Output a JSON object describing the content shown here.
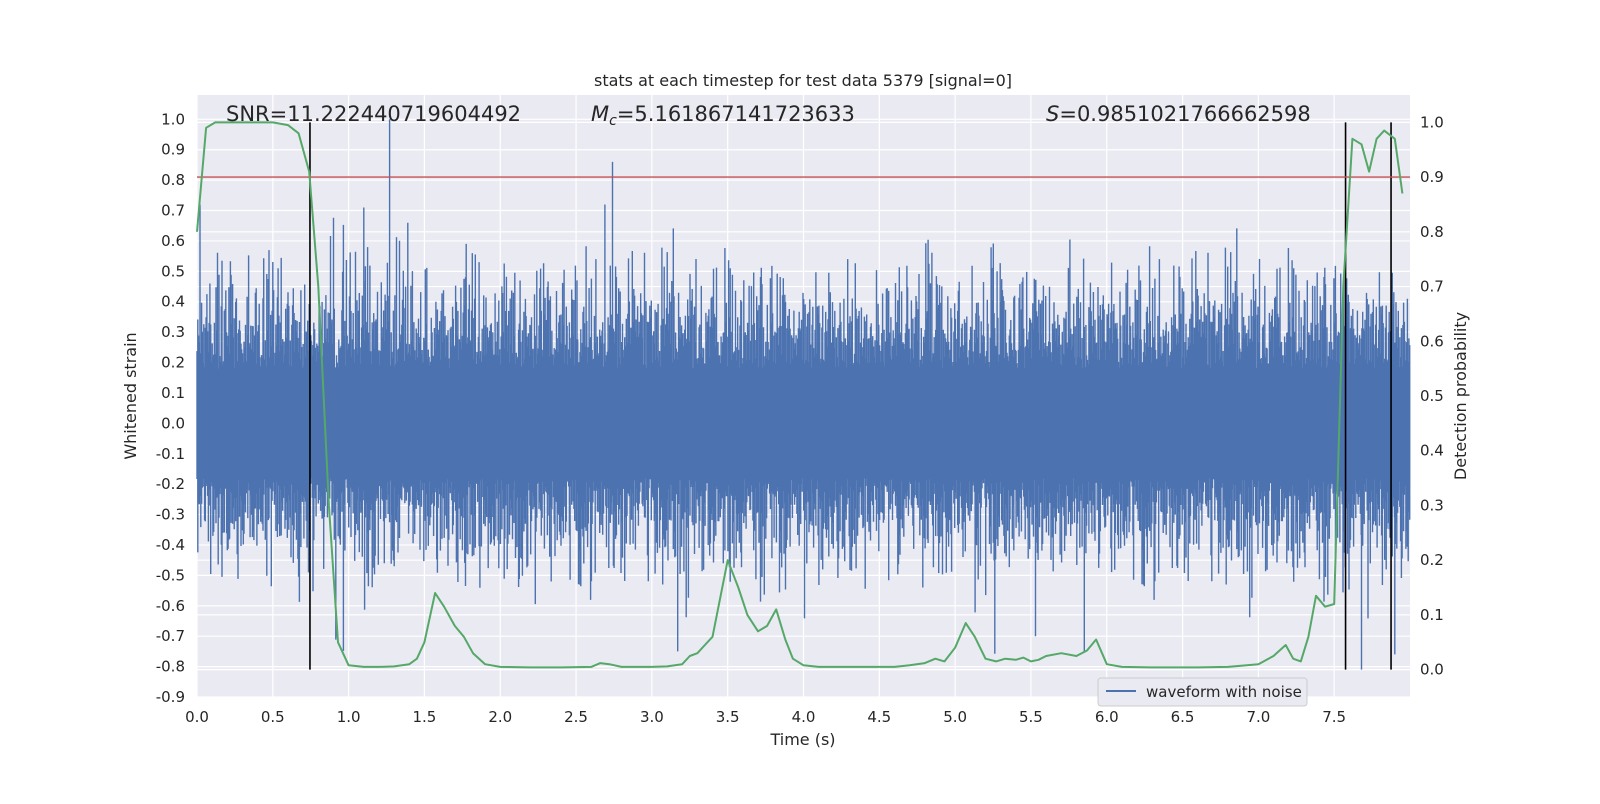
{
  "chart_data": {
    "type": "line",
    "title": "stats at each timestep for test data 5379 [signal=0]",
    "xlabel": "Time (s)",
    "ylabel": "Whitened strain",
    "y2label": "Detection probability",
    "xlim": [
      0.0,
      8.0
    ],
    "ylim": [
      -0.9,
      1.08
    ],
    "y2lim": [
      -0.05,
      1.05
    ],
    "grid": true,
    "legend_position": "lower-right",
    "x_ticks": [
      "0.0",
      "0.5",
      "1.0",
      "1.5",
      "2.0",
      "2.5",
      "3.0",
      "3.5",
      "4.0",
      "4.5",
      "5.0",
      "5.5",
      "6.0",
      "6.5",
      "7.0",
      "7.5"
    ],
    "y_ticks": [
      "-0.9",
      "-0.8",
      "-0.7",
      "-0.6",
      "-0.5",
      "-0.4",
      "-0.3",
      "-0.2",
      "-0.1",
      "0.0",
      "0.1",
      "0.2",
      "0.3",
      "0.4",
      "0.5",
      "0.6",
      "0.7",
      "0.8",
      "0.9",
      "1.0"
    ],
    "y2_ticks": [
      "0.0",
      "0.1",
      "0.2",
      "0.3",
      "0.4",
      "0.5",
      "0.6",
      "0.7",
      "0.8",
      "0.9",
      "1.0"
    ],
    "annotations": {
      "snr": "SNR=11.222440719604492",
      "mc_symbol": "M",
      "mc_sub": "c",
      "mc_value": "=5.161867141723633",
      "s_symbol": "S",
      "s_value": "=0.9851021766662598"
    },
    "series": [
      {
        "name": "waveform with noise",
        "axis": "left",
        "color": "#4c72b0",
        "description_envelope": {
          "typical_amplitude": 0.3,
          "peak_max": 1.0,
          "peak_min": -0.81,
          "duration_s": 8.0
        }
      },
      {
        "axis": "right",
        "color": "#55a868",
        "x": [
          0.0,
          0.06,
          0.12,
          0.2,
          0.3,
          0.4,
          0.5,
          0.6,
          0.67,
          0.74,
          0.8,
          0.87,
          0.93,
          1.0,
          1.1,
          1.2,
          1.3,
          1.4,
          1.45,
          1.5,
          1.57,
          1.63,
          1.7,
          1.76,
          1.82,
          1.9,
          2.0,
          2.2,
          2.4,
          2.6,
          2.66,
          2.72,
          2.8,
          2.9,
          3.0,
          3.1,
          3.2,
          3.25,
          3.3,
          3.35,
          3.4,
          3.5,
          3.57,
          3.63,
          3.7,
          3.76,
          3.82,
          3.88,
          3.93,
          4.0,
          4.1,
          4.2,
          4.4,
          4.6,
          4.7,
          4.8,
          4.87,
          4.93,
          5.0,
          5.07,
          5.13,
          5.2,
          5.27,
          5.33,
          5.4,
          5.45,
          5.5,
          5.55,
          5.6,
          5.7,
          5.8,
          5.87,
          5.93,
          6.0,
          6.1,
          6.3,
          6.6,
          6.8,
          7.0,
          7.1,
          7.18,
          7.23,
          7.28,
          7.33,
          7.38,
          7.44,
          7.5,
          7.56,
          7.62,
          7.68,
          7.73,
          7.78,
          7.83,
          7.9,
          7.95
        ],
        "values": [
          0.8,
          0.99,
          1.0,
          1.0,
          1.0,
          1.0,
          1.0,
          0.995,
          0.98,
          0.91,
          0.7,
          0.3,
          0.05,
          0.008,
          0.005,
          0.005,
          0.006,
          0.01,
          0.02,
          0.05,
          0.14,
          0.115,
          0.08,
          0.06,
          0.03,
          0.01,
          0.005,
          0.004,
          0.004,
          0.005,
          0.012,
          0.01,
          0.005,
          0.005,
          0.005,
          0.006,
          0.01,
          0.025,
          0.03,
          0.045,
          0.06,
          0.2,
          0.15,
          0.1,
          0.07,
          0.08,
          0.11,
          0.055,
          0.02,
          0.008,
          0.005,
          0.005,
          0.005,
          0.005,
          0.008,
          0.012,
          0.02,
          0.015,
          0.04,
          0.085,
          0.06,
          0.02,
          0.015,
          0.02,
          0.018,
          0.022,
          0.015,
          0.018,
          0.025,
          0.03,
          0.025,
          0.035,
          0.055,
          0.01,
          0.005,
          0.004,
          0.004,
          0.005,
          0.01,
          0.025,
          0.045,
          0.02,
          0.015,
          0.06,
          0.135,
          0.115,
          0.12,
          0.7,
          0.97,
          0.96,
          0.91,
          0.97,
          0.985,
          0.97,
          0.87
        ]
      }
    ],
    "threshold_line": {
      "axis": "right",
      "value": 0.9,
      "color": "#c44e52"
    },
    "vertical_markers_x": [
      0.745,
      7.575,
      7.875
    ]
  }
}
